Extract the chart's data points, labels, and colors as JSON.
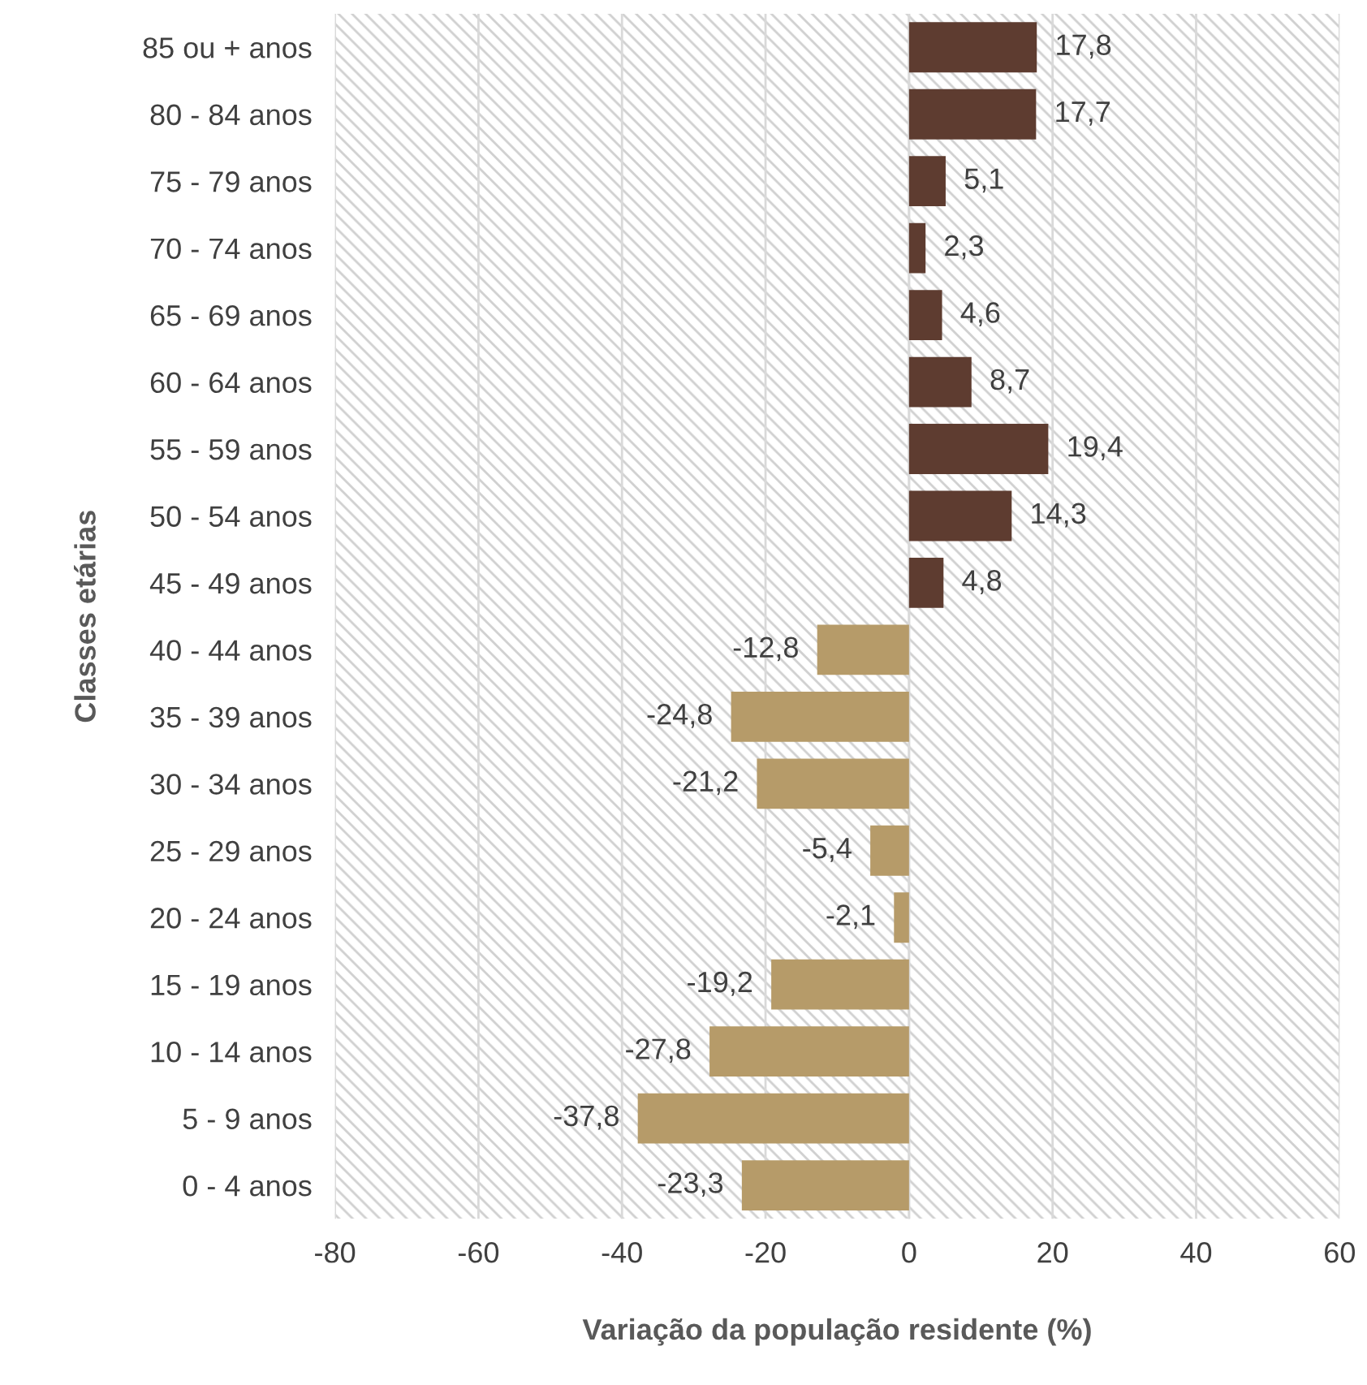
{
  "chart_data": {
    "type": "bar",
    "orientation": "horizontal",
    "xlabel": "Variação da população residente (%)",
    "ylabel": "Classes etárias",
    "categories": [
      "85 ou + anos",
      "80 - 84 anos",
      "75 - 79 anos",
      "70 - 74 anos",
      "65 - 69 anos",
      "60 - 64 anos",
      "55 - 59 anos",
      "50 - 54 anos",
      "45 - 49 anos",
      "40 - 44 anos",
      "35 - 39 anos",
      "30 - 34 anos",
      "25 - 29 anos",
      "20 - 24 anos",
      "15 - 19 anos",
      "10 - 14 anos",
      "5 - 9 anos",
      "0 - 4 anos"
    ],
    "values": [
      17.8,
      17.7,
      5.1,
      2.3,
      4.6,
      8.7,
      19.4,
      14.3,
      4.8,
      -12.8,
      -24.8,
      -21.2,
      -5.4,
      -2.1,
      -19.2,
      -27.8,
      -37.8,
      -23.3
    ],
    "value_labels": [
      "17,8",
      "17,7",
      "5,1",
      "2,3",
      "4,6",
      "8,7",
      "19,4",
      "14,3",
      "4,8",
      "-12,8",
      "-24,8",
      "-21,2",
      "-5,4",
      "-2,1",
      "-19,2",
      "-27,8",
      "-37,8",
      "-23,3"
    ],
    "colors": [
      "#5e3c30",
      "#5e3c30",
      "#5e3c30",
      "#5e3c30",
      "#5e3c30",
      "#5e3c30",
      "#5e3c30",
      "#5e3c30",
      "#5e3c30",
      "#b69b69",
      "#b69b69",
      "#b69b69",
      "#b69b69",
      "#b69b69",
      "#b69b69",
      "#b69b69",
      "#b69b69",
      "#b69b69"
    ],
    "xlim": [
      -80,
      60
    ],
    "xticks": [
      -80,
      -60,
      -40,
      -20,
      0,
      20,
      40,
      60
    ],
    "grid": "x"
  }
}
